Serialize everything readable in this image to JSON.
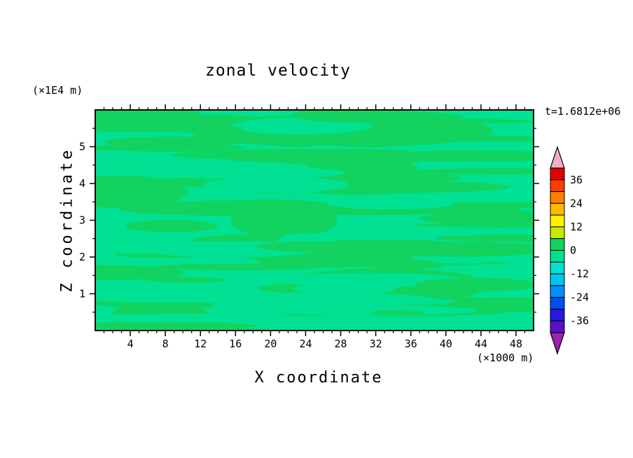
{
  "chart_data": {
    "type": "heatmap",
    "title": "zonal velocity",
    "xlabel": "X coordinate",
    "ylabel": "Z coordinate",
    "x_units": "(×1000 m)",
    "y_units": "(×1E4 m)",
    "time_annotation": "t=1.6812e+06",
    "xlim": [
      0,
      50
    ],
    "ylim": [
      0,
      6
    ],
    "x_ticks": [
      4,
      8,
      12,
      16,
      20,
      24,
      28,
      32,
      36,
      40,
      44,
      48
    ],
    "x_minor_step": 1,
    "y_ticks": [
      1,
      2,
      3,
      4,
      5
    ],
    "y_minor_step": 0.5,
    "grid": false,
    "field_summary": "Filled contour field of zonal velocity; values across the whole domain lie in the two bands adjacent to 0 (-6..0 and 0..6), drawn as horizontally elongated streaks of two greens.",
    "field_colors": {
      "background": "#00e193",
      "streak": "#12d35f"
    },
    "render": {
      "seed": 42,
      "streaks": 60,
      "holes": 26,
      "streaks2": 18,
      "big_blobs": 8
    },
    "colorbar": {
      "orientation": "vertical",
      "position": "right",
      "labels": [
        36,
        24,
        12,
        0,
        -12,
        -24,
        -36
      ],
      "band_step": 6,
      "range": [
        -42,
        42
      ],
      "over_color": "#f2aec4",
      "under_color": "#a020b0",
      "band_colors_top_to_bottom": [
        "#e30000",
        "#ff3c00",
        "#ff7f00",
        "#ffb900",
        "#fff200",
        "#c8e800",
        "#12d35f",
        "#00e193",
        "#00e2cb",
        "#00c4f0",
        "#0090ff",
        "#0050f0",
        "#2818d8",
        "#5a10c8"
      ]
    }
  }
}
